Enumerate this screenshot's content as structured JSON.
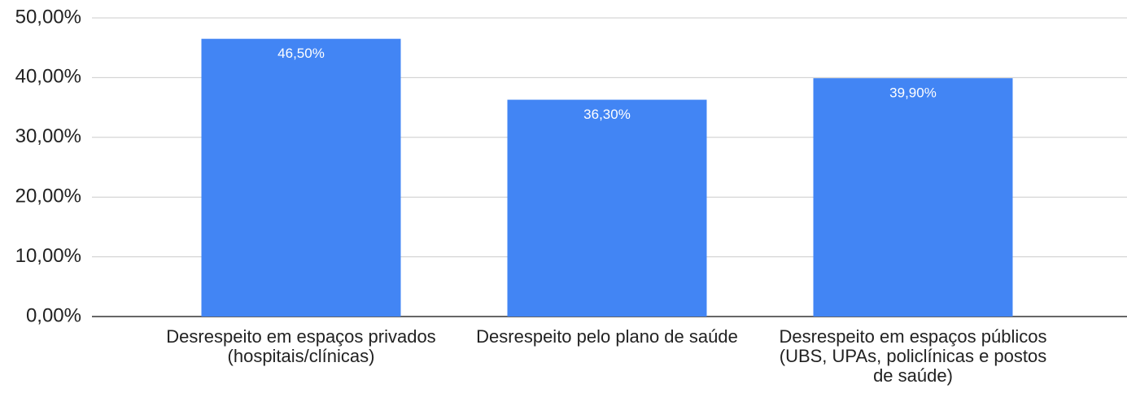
{
  "chart_data": {
    "type": "bar",
    "categories": [
      "Desrespeito em espaços privados (hospitais/clínicas)",
      "Desrespeito pelo plano de saúde",
      "Desrespeito em espaços públicos (UBS, UPAs, policlínicas e postos de saúde)"
    ],
    "values": [
      46.5,
      36.3,
      39.9
    ],
    "value_labels": [
      "46,50%",
      "36,30%",
      "39,90%"
    ],
    "color": "#4285f4",
    "ylim": [
      0,
      50
    ],
    "yticks": [
      {
        "value": 0,
        "label": "0,00%"
      },
      {
        "value": 10,
        "label": "10,00%"
      },
      {
        "value": 20,
        "label": "20,00%"
      },
      {
        "value": 30,
        "label": "30,00%"
      },
      {
        "value": 40,
        "label": "40,00%"
      },
      {
        "value": 50,
        "label": "50,00%"
      }
    ],
    "grid": true
  }
}
